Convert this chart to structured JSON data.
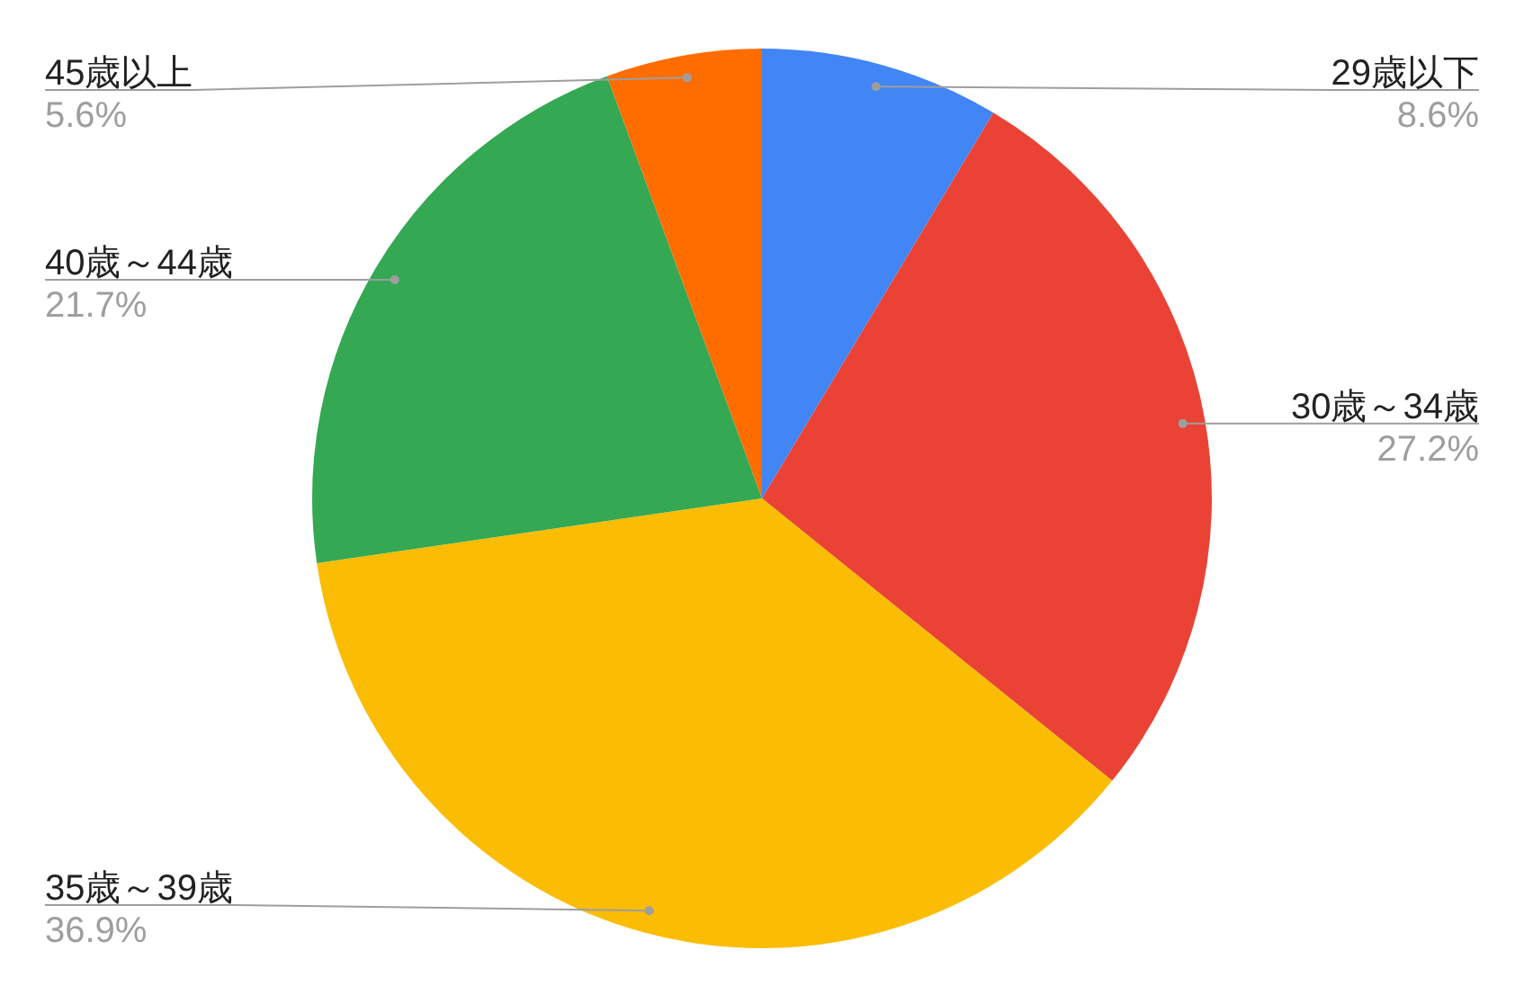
{
  "chart_data": {
    "type": "pie",
    "categories": [
      "29歳以下",
      "30歳～34歳",
      "35歳～39歳",
      "40歳～44歳",
      "45歳以上"
    ],
    "values": [
      8.6,
      27.2,
      36.9,
      21.7,
      5.6
    ],
    "colors": [
      "#4285f4",
      "#ea4335",
      "#fbbc04",
      "#34a853",
      "#ff6d01"
    ],
    "value_labels": [
      "8.6%",
      "27.2%",
      "36.9%",
      "21.7%",
      "5.6%"
    ],
    "legend": false
  }
}
